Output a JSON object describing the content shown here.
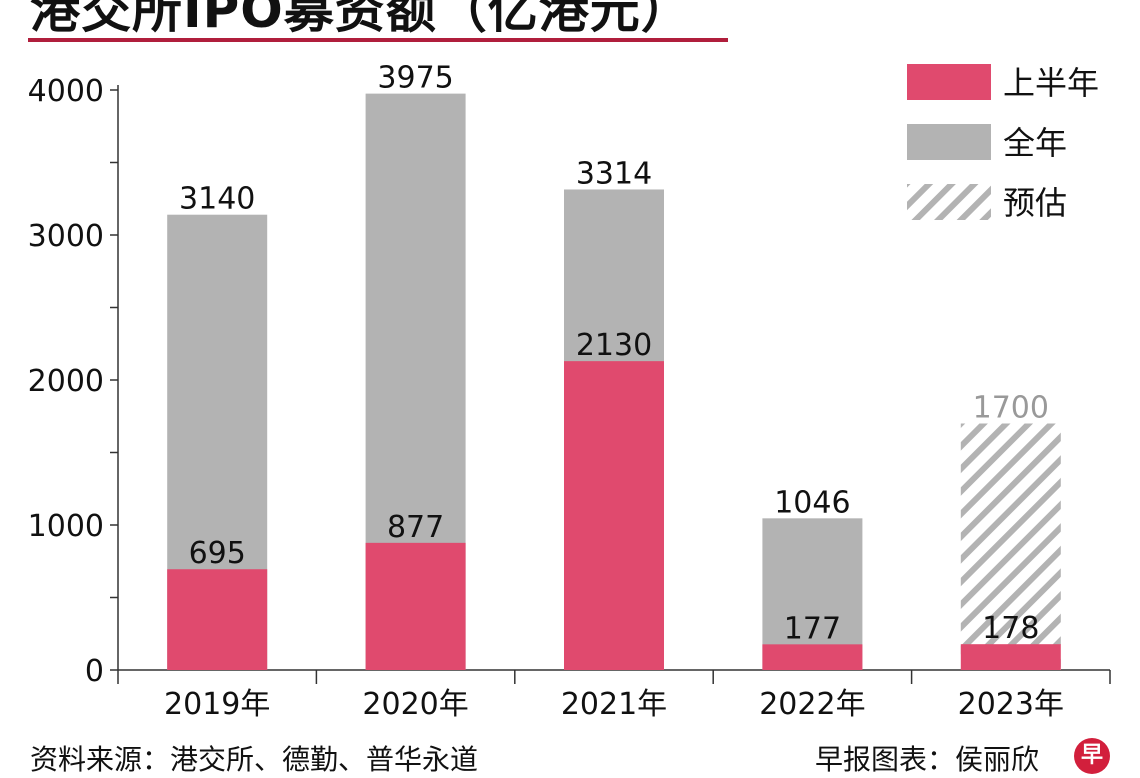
{
  "header": {
    "title": "港交所IPO募资额（亿港元）"
  },
  "footer": {
    "source": "资料来源：港交所、德勤、普华永道",
    "credit": "早报图表：侯丽欣",
    "logo_text": "早"
  },
  "colors": {
    "first_half": "#e04a6e",
    "full_year": "#b3b3b3",
    "estimate_stripe": "#b3b3b3",
    "title_rule": "#b01e3c"
  },
  "chart_data": {
    "type": "bar",
    "title": "港交所IPO募资额（亿港元）",
    "categories": [
      "2019年",
      "2020年",
      "2021年",
      "2022年",
      "2023年"
    ],
    "series": [
      {
        "name": "上半年",
        "values": [
          695,
          877,
          2130,
          177,
          178
        ]
      },
      {
        "name": "全年",
        "values": [
          3140,
          3975,
          3314,
          1046,
          null
        ]
      },
      {
        "name": "预估",
        "values": [
          null,
          null,
          null,
          null,
          1700
        ]
      }
    ],
    "ylim": [
      0,
      4000
    ],
    "yticks": [
      0,
      1000,
      2000,
      3000,
      4000
    ],
    "grid": false,
    "legend_position": "top-right",
    "legend": [
      "上半年",
      "全年",
      "预估"
    ]
  }
}
